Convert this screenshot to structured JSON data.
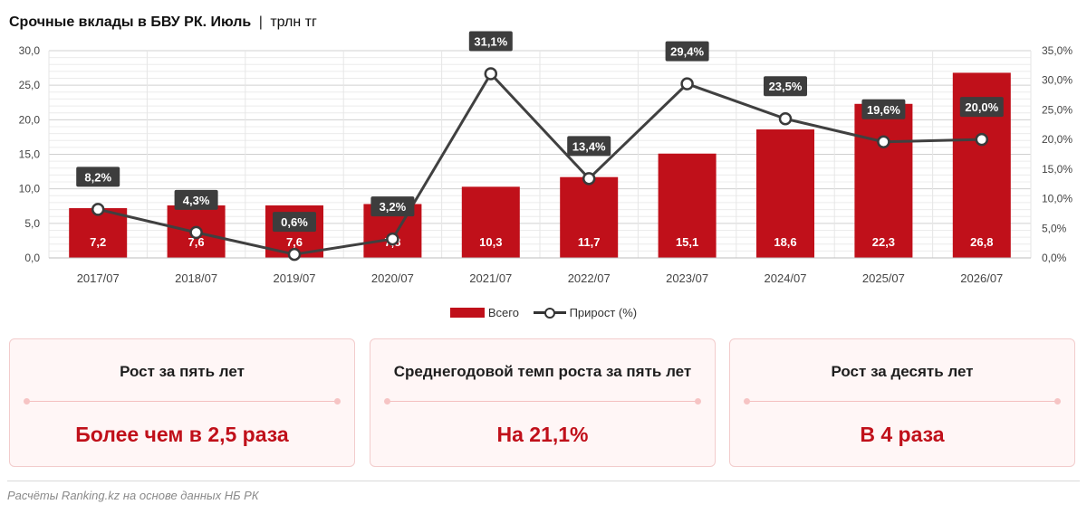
{
  "header": {
    "title": "Срочные вклады в БВУ РК. Июль",
    "separator": "|",
    "unit": "трлн тг"
  },
  "chart_data": {
    "type": "bar",
    "title": "Срочные вклады в БВУ РК. Июль",
    "categories": [
      "2017/07",
      "2018/07",
      "2019/07",
      "2020/07",
      "2021/07",
      "2022/07",
      "2023/07",
      "2024/07",
      "2025/07",
      "2026/07"
    ],
    "series": [
      {
        "name": "Всего",
        "type": "bar",
        "axis": "left",
        "values": [
          7.2,
          7.6,
          7.6,
          7.8,
          10.3,
          11.7,
          15.1,
          18.6,
          22.3,
          26.8
        ],
        "labels": [
          "7,2",
          "7,6",
          "7,6",
          "7,8",
          "10,3",
          "11,7",
          "15,1",
          "18,6",
          "22,3",
          "26,8"
        ],
        "color": "#c0101a"
      },
      {
        "name": "Прирост (%)",
        "type": "line",
        "axis": "right",
        "values": [
          8.2,
          4.3,
          0.6,
          3.2,
          31.1,
          13.4,
          29.4,
          23.5,
          19.6,
          20.0
        ],
        "labels": [
          "8,2%",
          "4,3%",
          "0,6%",
          "3,2%",
          "31,1%",
          "13,4%",
          "29,4%",
          "23,5%",
          "19,6%",
          "20,0%"
        ],
        "color": "#404040"
      }
    ],
    "y_left": {
      "ylim": [
        0,
        30
      ],
      "ticks": [
        "0,0",
        "5,0",
        "10,0",
        "15,0",
        "20,0",
        "25,0",
        "30,0"
      ]
    },
    "y_right": {
      "ylim": [
        0,
        35
      ],
      "ticks": [
        "0,0%",
        "5,0%",
        "10,0%",
        "15,0%",
        "20,0%",
        "25,0%",
        "30,0%",
        "35,0%"
      ]
    },
    "grid": true,
    "legend": "bottom-center"
  },
  "legend": {
    "bar_label": "Всего",
    "line_label": "Прирост (%)"
  },
  "cards": [
    {
      "title": "Рост за пять лет",
      "value": "Более чем в 2,5 раза"
    },
    {
      "title": "Среднегодовой темп роста за пять лет",
      "value": "На 21,1%"
    },
    {
      "title": "Рост за десять лет",
      "value": "В 4 раза"
    }
  ],
  "footer": {
    "source": "Расчёты Ranking.kz на основе данных НБ РК"
  },
  "colors": {
    "accent": "#c0101a",
    "line": "#404040",
    "card_bg": "#fff6f6",
    "card_border": "#f2cccc"
  }
}
